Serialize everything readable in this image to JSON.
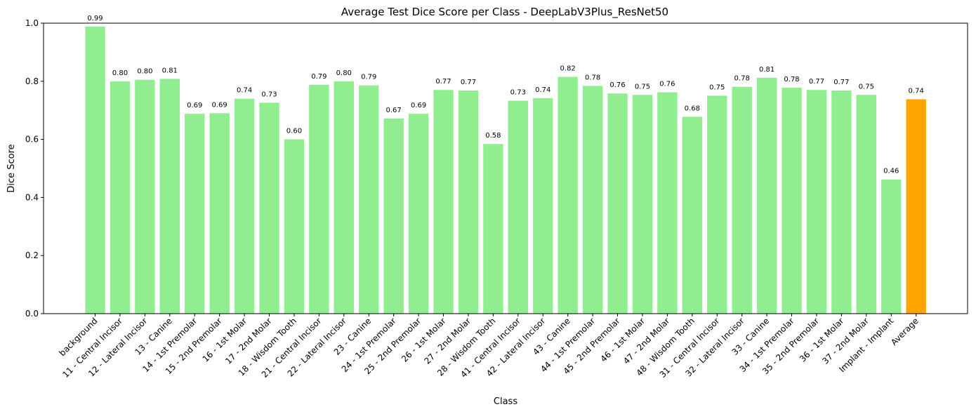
{
  "chart_data": {
    "type": "bar",
    "title": "Average Test Dice Score per Class - DeepLabV3Plus_ResNet50",
    "xlabel": "Class",
    "ylabel": "Dice Score",
    "ylim": [
      0,
      1
    ],
    "yticks": [
      "0.0",
      "0.2",
      "0.4",
      "0.6",
      "0.8",
      "1.0"
    ],
    "grid": false,
    "categories": [
      "background",
      "11 - Central Incisor",
      "12 - Lateral Incisor",
      "13 - Canine",
      "14 - 1st Premolar",
      "15 - 2nd Premolar",
      "16 - 1st Molar",
      "17 - 2nd Molar",
      "18 - Wisdom Tooth",
      "21 - Central Incisor",
      "22 - Lateral Incisor",
      "23 - Canine",
      "24 - 1st Premolar",
      "25 - 2nd Premolar",
      "26 - 1st Molar",
      "27 - 2nd Molar",
      "28 - Wisdom Tooth",
      "41 - Central Incisor",
      "42 - Lateral Incisor",
      "43 - Canine",
      "44 - 1st Premolar",
      "45 - 2nd Premolar",
      "46 - 1st Molar",
      "47 - 2nd Molar",
      "48 - Wisdom Tooth",
      "31 - Central Incisor",
      "32 - Lateral Incisor",
      "33 - Canine",
      "34 - 1st Premolar",
      "35 - 2nd Premolar",
      "36 - 1st Molar",
      "37 - 2nd Molar",
      "Implant - Implant",
      "Average"
    ],
    "values": [
      0.988,
      0.8,
      0.805,
      0.808,
      0.688,
      0.69,
      0.74,
      0.726,
      0.6,
      0.788,
      0.8,
      0.786,
      0.672,
      0.688,
      0.77,
      0.768,
      0.584,
      0.733,
      0.742,
      0.815,
      0.784,
      0.758,
      0.753,
      0.762,
      0.678,
      0.75,
      0.781,
      0.812,
      0.778,
      0.77,
      0.768,
      0.753,
      0.462,
      0.738
    ],
    "data_labels": [
      "0.99",
      "0.80",
      "0.80",
      "0.81",
      "0.69",
      "0.69",
      "0.74",
      "0.73",
      "0.60",
      "0.79",
      "0.80",
      "0.79",
      "0.67",
      "0.69",
      "0.77",
      "0.77",
      "0.58",
      "0.73",
      "0.74",
      "0.82",
      "0.78",
      "0.76",
      "0.75",
      "0.76",
      "0.68",
      "0.75",
      "0.78",
      "0.81",
      "0.78",
      "0.77",
      "0.77",
      "0.75",
      "0.46",
      "0.74"
    ],
    "colors": {
      "bar": "#90ee90",
      "highlight": "#ffa500",
      "highlight_category": "Average"
    }
  }
}
